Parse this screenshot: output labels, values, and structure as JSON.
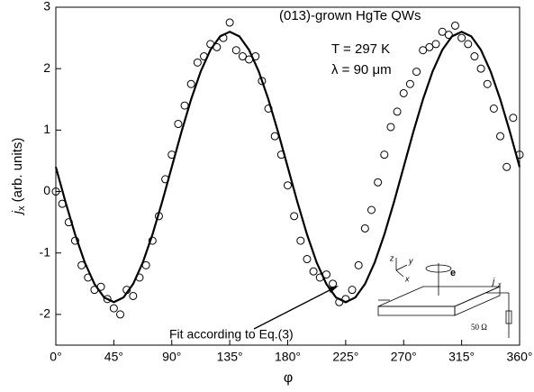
{
  "chart_data": {
    "type": "scatter",
    "xlabel": "φ",
    "ylabel": {
      "symbol": "j",
      "subscript": "x",
      "text": " (arb. units)"
    },
    "annotations": [
      "(013)-grown HgTe QWs",
      "T = 297 K",
      "λ = 90 μm",
      "Fit according to Eq.(3)"
    ],
    "inset": {
      "labels": [
        "z",
        "y",
        "x",
        "e",
        "j",
        "x",
        "50 Ω"
      ]
    },
    "xlim": [
      0,
      360
    ],
    "xticks": [
      {
        "value": 0,
        "label": "0°"
      },
      {
        "value": 45,
        "label": "45°"
      },
      {
        "value": 90,
        "label": "90°"
      },
      {
        "value": 135,
        "label": "135°"
      },
      {
        "value": 180,
        "label": "180°"
      },
      {
        "value": 225,
        "label": "225°"
      },
      {
        "value": 270,
        "label": "270°"
      },
      {
        "value": 315,
        "label": "315°"
      },
      {
        "value": 360,
        "label": "360°"
      }
    ],
    "ylim": [
      -2.5,
      3
    ],
    "yticks": [
      -2,
      -1,
      0,
      1,
      2,
      3
    ],
    "series": [
      {
        "mode": "markers",
        "color": "#000000",
        "x": [
          0,
          5,
          10,
          15,
          20,
          25,
          30,
          35,
          40,
          45,
          50,
          55,
          60,
          65,
          70,
          75,
          80,
          85,
          90,
          95,
          100,
          105,
          110,
          115,
          120,
          125,
          130,
          135,
          140,
          145,
          150,
          155,
          160,
          165,
          170,
          175,
          180,
          185,
          190,
          195,
          200,
          205,
          210,
          215,
          220,
          225,
          230,
          235,
          240,
          245,
          250,
          255,
          260,
          265,
          270,
          275,
          280,
          285,
          290,
          295,
          300,
          305,
          310,
          315,
          320,
          325,
          330,
          335,
          340,
          345,
          350,
          355,
          360
        ],
        "values": [
          0.0,
          -0.2,
          -0.5,
          -0.8,
          -1.2,
          -1.4,
          -1.6,
          -1.55,
          -1.75,
          -1.9,
          -2.0,
          -1.6,
          -1.7,
          -1.4,
          -1.2,
          -0.8,
          -0.4,
          0.2,
          0.6,
          1.1,
          1.4,
          1.75,
          2.1,
          2.2,
          2.4,
          2.35,
          2.5,
          2.75,
          2.3,
          2.2,
          2.15,
          2.2,
          1.8,
          1.35,
          0.9,
          0.6,
          0.1,
          -0.4,
          -0.8,
          -1.1,
          -1.3,
          -1.4,
          -1.35,
          -1.5,
          -1.8,
          -1.75,
          -1.6,
          -1.2,
          -0.6,
          -0.3,
          0.15,
          0.6,
          1.05,
          1.3,
          1.6,
          1.75,
          1.95,
          2.3,
          2.35,
          2.4,
          2.6,
          2.55,
          2.7,
          2.5,
          2.4,
          2.2,
          2.0,
          1.75,
          1.35,
          0.9,
          0.4,
          1.2,
          0.6
        ]
      },
      {
        "mode": "line",
        "color": "#000000",
        "x": [
          0,
          7.5,
          15,
          22.5,
          30,
          37.5,
          45,
          52.5,
          60,
          67.5,
          75,
          82.5,
          90,
          97.5,
          105,
          112.5,
          120,
          127.5,
          135,
          142.5,
          150,
          157.5,
          165,
          172.5,
          180,
          187.5,
          195,
          202.5,
          210,
          217.5,
          225,
          232.5,
          240,
          247.5,
          255,
          262.5,
          270,
          277.5,
          285,
          292.5,
          300,
          307.5,
          315,
          322.5,
          330,
          337.5,
          345,
          352.5,
          360
        ],
        "values": [
          0.4,
          -0.17,
          -0.7,
          -1.156,
          -1.505,
          -1.725,
          -1.8,
          -1.725,
          -1.505,
          -1.156,
          -0.7,
          -0.17,
          0.4,
          0.97,
          1.5,
          1.956,
          2.305,
          2.525,
          2.6,
          2.525,
          2.305,
          1.956,
          1.5,
          0.97,
          0.4,
          -0.17,
          -0.7,
          -1.156,
          -1.505,
          -1.725,
          -1.8,
          -1.725,
          -1.505,
          -1.156,
          -0.7,
          -0.17,
          0.4,
          0.97,
          1.5,
          1.956,
          2.305,
          2.525,
          2.6,
          2.525,
          2.305,
          1.956,
          1.5,
          0.97,
          0.4
        ]
      }
    ]
  }
}
